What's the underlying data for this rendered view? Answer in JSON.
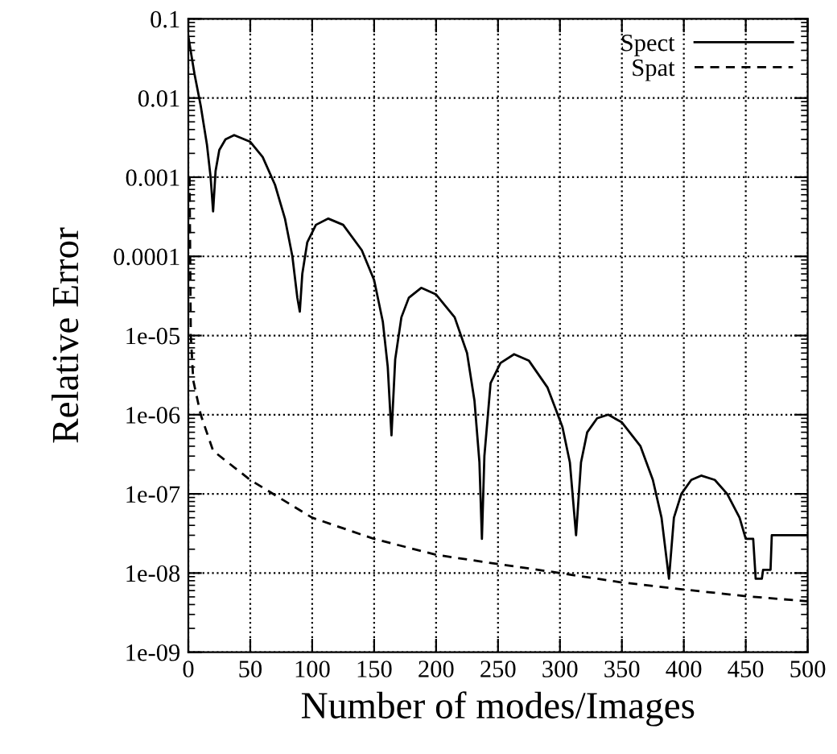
{
  "chart_data": {
    "type": "line",
    "xlabel": "Number of modes/Images",
    "ylabel": "Relative Error",
    "log": "y",
    "grid": true,
    "legend": "top right",
    "xlim": [
      0,
      500
    ],
    "xticks": [
      0,
      50,
      100,
      150,
      200,
      250,
      300,
      350,
      400,
      450,
      500
    ],
    "ylim": [
      1e-09,
      0.1
    ],
    "yticks": [
      {
        "value": 0.1,
        "label": "0.1"
      },
      {
        "value": 0.01,
        "label": "0.01"
      },
      {
        "value": 0.001,
        "label": "0.001"
      },
      {
        "value": 0.0001,
        "label": "0.0001"
      },
      {
        "value": 1e-05,
        "label": "1e-05"
      },
      {
        "value": 1e-06,
        "label": "1e-06"
      },
      {
        "value": 1e-07,
        "label": "1e-07"
      },
      {
        "value": 1e-08,
        "label": "1e-08"
      },
      {
        "value": 1e-09,
        "label": "1e-09"
      }
    ],
    "series": [
      {
        "name": "Spect",
        "color": "#000000",
        "line_style": "solid",
        "x": [
          0,
          5,
          10,
          15,
          18,
          20,
          22,
          25,
          30,
          37,
          50,
          60,
          70,
          78,
          84,
          88,
          90,
          92,
          96,
          103,
          113,
          125,
          140,
          150,
          157,
          161,
          164,
          167,
          172,
          178,
          188,
          200,
          215,
          225,
          231,
          235,
          237,
          239,
          244,
          252,
          263,
          275,
          290,
          302,
          308,
          313,
          317,
          322,
          330,
          339,
          350,
          365,
          375,
          382,
          388,
          392,
          398,
          406,
          414,
          425,
          435,
          445,
          450,
          456,
          458,
          463,
          464,
          470,
          471,
          500
        ],
        "values": [
          0.06,
          0.02,
          0.008,
          0.0026,
          0.001,
          0.00037,
          0.0012,
          0.0022,
          0.003,
          0.0034,
          0.0028,
          0.0018,
          0.0008,
          0.0003,
          0.0001,
          3e-05,
          2e-05,
          6e-05,
          0.00015,
          0.00025,
          0.0003,
          0.00025,
          0.00012,
          5e-05,
          1.5e-05,
          4e-06,
          5.5e-07,
          5e-06,
          1.7e-05,
          3e-05,
          4e-05,
          3.3e-05,
          1.7e-05,
          6e-06,
          1.5e-06,
          2.5e-07,
          2.7e-08,
          3e-07,
          2.5e-06,
          4.5e-06,
          5.8e-06,
          4.8e-06,
          2.2e-06,
          7e-07,
          2.5e-07,
          3e-08,
          2.5e-07,
          6e-07,
          9e-07,
          1e-06,
          8e-07,
          4e-07,
          1.5e-07,
          5e-08,
          8.5e-09,
          5e-08,
          1e-07,
          1.5e-07,
          1.7e-07,
          1.5e-07,
          1e-07,
          5e-08,
          2.7e-08,
          2.7e-08,
          8.5e-09,
          8.5e-09,
          1.1e-08,
          1.1e-08,
          3e-08,
          3e-08
        ]
      },
      {
        "name": "Spat",
        "color": "#000000",
        "line_style": "dashed",
        "x": [
          1,
          2,
          4,
          10,
          20,
          50,
          100,
          150,
          200,
          250,
          300,
          350,
          400,
          450,
          500
        ],
        "values": [
          0.001,
          1e-05,
          2.7e-06,
          1e-06,
          3.5e-07,
          1.5e-07,
          5e-08,
          2.7e-08,
          1.7e-08,
          1.3e-08,
          1e-08,
          7.6e-09,
          6.2e-09,
          5.1e-09,
          4.4e-09
        ]
      }
    ]
  }
}
